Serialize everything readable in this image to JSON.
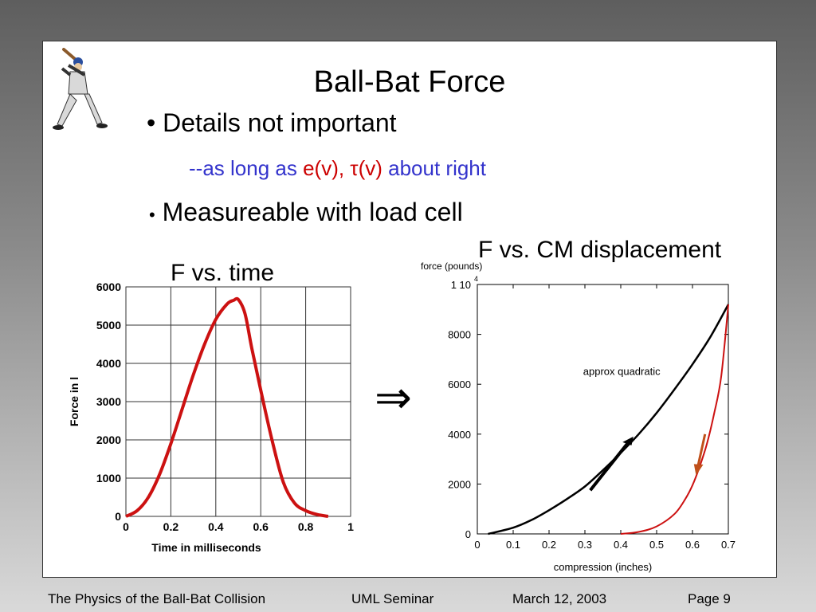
{
  "slide": {
    "title": "Ball-Bat Force",
    "bullet1": "Details not important",
    "sub1_prefix": "--as long as",
    "sub1_highlight": "e(v), τ(v)",
    "sub1_suffix": "about right",
    "bullet2": "Measureable with load cell",
    "label_time": "F vs. time",
    "label_displacement": "F vs. CM displacement",
    "implies_symbol": "⇒"
  },
  "footer": {
    "talk": "The Physics of the Ball-Bat Collision",
    "venue": "UML Seminar",
    "date": "March 12, 2003",
    "page": "Page 9"
  },
  "colors": {
    "curve_red": "#cc1111",
    "text_blue": "#3333cc",
    "text_red": "#cc0000"
  },
  "chart_data": [
    {
      "type": "line",
      "xlabel": "Time in milliseconds",
      "ylabel": "Force in l",
      "xlim": [
        0,
        1
      ],
      "ylim": [
        0,
        6000
      ],
      "xticks": [
        "0",
        "0.2",
        "0.4",
        "0.6",
        "0.8",
        "1"
      ],
      "yticks": [
        "0",
        "1000",
        "2000",
        "3000",
        "4000",
        "5000",
        "6000"
      ],
      "grid": true,
      "series": [
        {
          "x": [
            0,
            0.05,
            0.1,
            0.15,
            0.2,
            0.25,
            0.3,
            0.35,
            0.4,
            0.45,
            0.48,
            0.5,
            0.53,
            0.56,
            0.6,
            0.65,
            0.7,
            0.75,
            0.8,
            0.85,
            0.9
          ],
          "values": [
            0,
            150,
            500,
            1100,
            1900,
            2800,
            3700,
            4500,
            5150,
            5550,
            5650,
            5670,
            5300,
            4400,
            3300,
            2000,
            900,
            350,
            150,
            50,
            0
          ]
        }
      ]
    },
    {
      "type": "line",
      "ylabel": "force (pounds)",
      "xlabel": "compression (inches)",
      "xlim": [
        0,
        0.7
      ],
      "ylim": [
        0,
        10000
      ],
      "xticks": [
        "0",
        "0.1",
        "0.2",
        "0.3",
        "0.4",
        "0.5",
        "0.6",
        "0.7"
      ],
      "yticks": [
        "0",
        "2000",
        "4000",
        "6000",
        "8000"
      ],
      "ytop_label": "1 10",
      "ytop_exp": "4",
      "grid": false,
      "annotation": "approx quadratic",
      "series": [
        {
          "color": "#000000",
          "x": [
            0.03,
            0.1,
            0.15,
            0.2,
            0.25,
            0.3,
            0.35,
            0.4,
            0.45,
            0.5,
            0.55,
            0.6,
            0.65,
            0.7
          ],
          "values": [
            0,
            250,
            550,
            950,
            1400,
            1900,
            2550,
            3250,
            4000,
            4850,
            5800,
            6800,
            7900,
            9200
          ]
        },
        {
          "color": "#cc1111",
          "x": [
            0.4,
            0.45,
            0.5,
            0.55,
            0.58,
            0.6,
            0.62,
            0.64,
            0.66,
            0.68,
            0.7
          ],
          "values": [
            0,
            80,
            300,
            800,
            1400,
            1950,
            2700,
            3600,
            4800,
            6300,
            9200
          ]
        }
      ]
    }
  ]
}
